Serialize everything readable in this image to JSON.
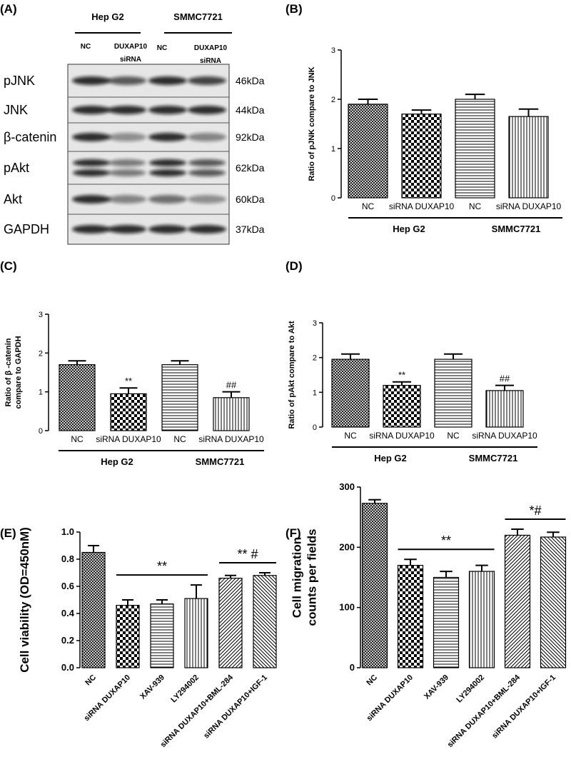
{
  "blot": {
    "label": "(A)",
    "groups": [
      {
        "name": "Hep G2",
        "lanes": [
          [
            "NC"
          ],
          [
            "DUXAP10",
            "siRNA"
          ]
        ]
      },
      {
        "name": "SMMC7721",
        "lanes": [
          [
            "NC"
          ],
          [
            "DUXAP10",
            "siRNA"
          ]
        ]
      }
    ],
    "rows": [
      {
        "protein": "pJNK",
        "size": "46kDa"
      },
      {
        "protein": "JNK",
        "size": "44kDa"
      },
      {
        "protein": "β-catenin",
        "size": "92kDa"
      },
      {
        "protein": "pAkt",
        "size": "62kDa"
      },
      {
        "protein": "Akt",
        "size": "60kDa"
      },
      {
        "protein": "GAPDH",
        "size": "37kDa"
      }
    ]
  },
  "chart_data": [
    {
      "type": "bar",
      "label": "(B)",
      "ylabel": [
        "Ratio of pJNK compare to JNK"
      ],
      "categories": [
        "NC",
        "siRNA DUXAP10",
        "NC",
        "siRNA DUXAP10"
      ],
      "groups": [
        "Hep G2",
        "SMMC7721"
      ],
      "values": [
        1.9,
        1.7,
        2.0,
        1.65
      ],
      "errors": [
        0.1,
        0.08,
        0.1,
        0.15
      ],
      "ylim": [
        0,
        3
      ],
      "yticks": [
        0,
        1,
        2,
        3
      ]
    },
    {
      "type": "bar",
      "label": "(C)",
      "ylabel": [
        "Ratio of β -catenin",
        "compare to GAPDH"
      ],
      "categories": [
        "NC",
        "siRNA DUXAP10",
        "NC",
        "siRNA DUXAP10"
      ],
      "groups": [
        "Hep G2",
        "SMMC7721"
      ],
      "values": [
        1.7,
        0.95,
        1.7,
        0.85
      ],
      "errors": [
        0.1,
        0.15,
        0.1,
        0.15
      ],
      "significance": [
        null,
        "**",
        null,
        "##"
      ],
      "ylim": [
        0,
        3
      ],
      "yticks": [
        0,
        1,
        2,
        3
      ]
    },
    {
      "type": "bar",
      "label": "(D)",
      "ylabel": [
        "Ratio of pAkt compare to Akt"
      ],
      "categories": [
        "NC",
        "siRNA DUXAP10",
        "NC",
        "siRNA DUXAP10"
      ],
      "groups": [
        "Hep G2",
        "SMMC7721"
      ],
      "values": [
        1.95,
        1.2,
        1.95,
        1.05
      ],
      "errors": [
        0.15,
        0.1,
        0.15,
        0.15
      ],
      "significance": [
        null,
        "**",
        null,
        "##"
      ],
      "ylim": [
        0,
        3
      ],
      "yticks": [
        0,
        1,
        2,
        3
      ]
    },
    {
      "type": "bar",
      "label": "(E)",
      "ylabel": [
        "Cell viability (OD=450nM)"
      ],
      "categories": [
        "NC",
        "siRNA DUXAP10",
        "XAV-939",
        "LY294002",
        "siRNA DUXAP10+BML-284",
        "siRNA DUXAP10+IGF-1"
      ],
      "values": [
        0.85,
        0.46,
        0.47,
        0.51,
        0.66,
        0.68
      ],
      "errors": [
        0.05,
        0.04,
        0.03,
        0.1,
        0.02,
        0.02
      ],
      "brackets": [
        {
          "text": "**",
          "from": "siRNA DUXAP10",
          "to": "LY294002"
        },
        {
          "text": "** #",
          "from": "siRNA DUXAP10+BML-284",
          "to": "siRNA DUXAP10+IGF-1"
        }
      ],
      "ylim": [
        0,
        1.0
      ],
      "yticks": [
        {
          "value": 0,
          "label": "0.0"
        },
        {
          "value": 0.2,
          "label": "0.2"
        },
        {
          "value": 0.4,
          "label": "0.4"
        },
        {
          "value": 0.6,
          "label": "0.6"
        },
        {
          "value": 0.8,
          "label": "0.8"
        },
        {
          "value": 1.0,
          "label": "1.0"
        }
      ]
    },
    {
      "type": "bar",
      "label": "(F)",
      "ylabel": [
        "Cell migration",
        "counts per fields"
      ],
      "categories": [
        "NC",
        "siRNA DUXAP10",
        "XAV-939",
        "LY294002",
        "siRNA DUXAP10+BML-284",
        "siRNA DUXAP10+IGF-1"
      ],
      "values": [
        273,
        170,
        150,
        160,
        220,
        217
      ],
      "errors": [
        6,
        10,
        10,
        10,
        10,
        8
      ],
      "brackets": [
        {
          "text": "**",
          "from": "siRNA DUXAP10",
          "to": "LY294002"
        },
        {
          "text": "*#",
          "from": "siRNA DUXAP10+BML-284",
          "to": "siRNA DUXAP10+IGF-1"
        }
      ],
      "ylim": [
        0,
        300
      ],
      "yticks": [
        0,
        100,
        200,
        300
      ]
    }
  ]
}
